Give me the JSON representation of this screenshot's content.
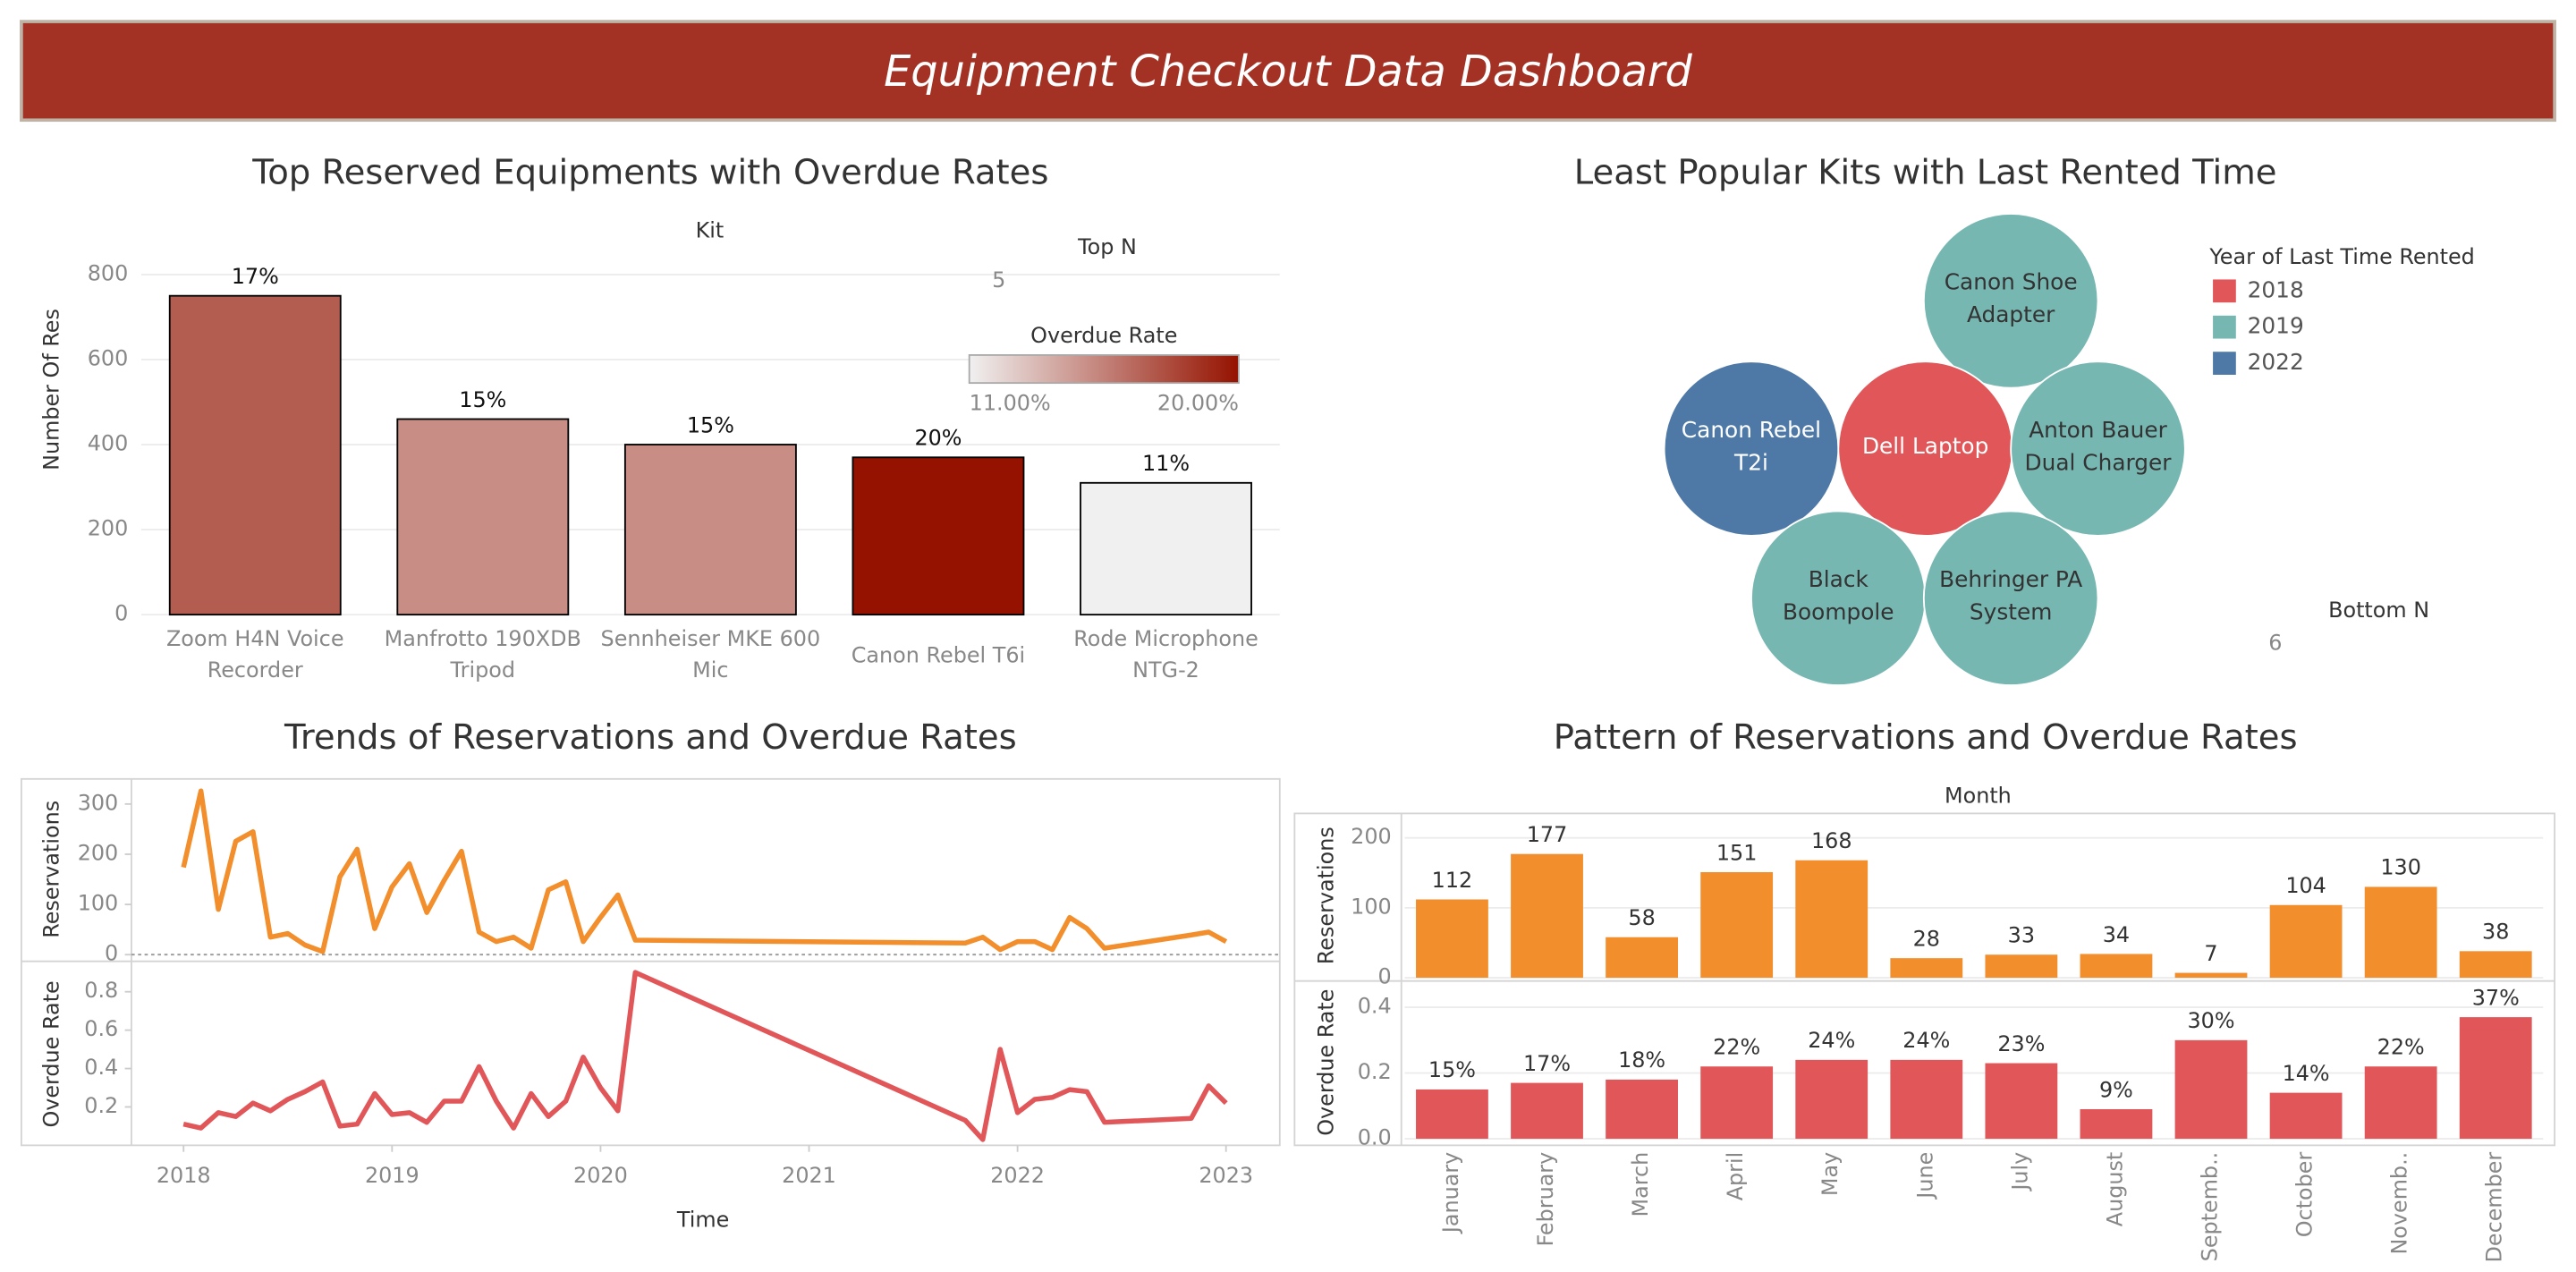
{
  "title": "Equipment Checkout Data Dashboard",
  "chart_data": [
    {
      "type": "bar",
      "title": "Top Reserved Equipments with Overdue Rates",
      "x_label": "Kit",
      "y_label": "Number Of Res",
      "categories": [
        "Zoom H4N Voice Recorder",
        "Manfrotto 190XDB Tripod",
        "Sennheiser MKE 600 Mic",
        "Canon Rebel T6i",
        "Rode Microphone NTG-2"
      ],
      "values": [
        750,
        460,
        400,
        370,
        310
      ],
      "ylim": [
        0,
        800
      ],
      "yticks": [
        0,
        200,
        400,
        600,
        800
      ],
      "grid": true,
      "overdue_rate": {
        "values": [
          17,
          15,
          15,
          20,
          11
        ],
        "value_labels": [
          "17%",
          "15%",
          "15%",
          "20%",
          "11%"
        ]
      },
      "color_legend": {
        "title": "Overdue Rate",
        "colors": [
          "#f0f0f0",
          "#951200"
        ],
        "min": {
          "value": 11,
          "label": "11.00%"
        },
        "max": {
          "value": 20,
          "label": "20.00%"
        }
      },
      "parameter": {
        "label": "Top N",
        "value": 5
      }
    },
    {
      "type": "packed_bubble",
      "title": "Least Popular Kits with Last Rented Time",
      "legend": {
        "title": "Year of Last Time Rented",
        "entries": [
          {
            "name": "2018",
            "color": "#e15759"
          },
          {
            "name": "2019",
            "color": "#76b7b2"
          },
          {
            "name": "2022",
            "color": "#4e79a7"
          }
        ]
      },
      "items": [
        {
          "label": "Canon Shoe Adapter",
          "year": "2019"
        },
        {
          "label": "Canon Rebel T2i",
          "year": "2022"
        },
        {
          "label": "Dell Laptop",
          "year": "2018"
        },
        {
          "label": "Anton Bauer Dual Charger",
          "year": "2019"
        },
        {
          "label": "Black Boompole",
          "year": "2019"
        },
        {
          "label": "Behringer PA System",
          "year": "2019"
        }
      ],
      "parameter": {
        "label": "Bottom N",
        "value": 6
      }
    },
    {
      "type": "line_panels",
      "title": "Trends of  Reservations and Overdue Rates",
      "x_label": "Time",
      "x": [
        2018,
        2018.083,
        2018.167,
        2018.25,
        2018.333,
        2018.417,
        2018.5,
        2018.583,
        2018.667,
        2018.75,
        2018.833,
        2018.917,
        2019,
        2019.083,
        2019.167,
        2019.25,
        2019.333,
        2019.417,
        2019.5,
        2019.583,
        2019.667,
        2019.75,
        2019.833,
        2019.917,
        2020,
        2020.083,
        2020.167,
        2021.75,
        2021.833,
        2021.917,
        2022,
        2022.083,
        2022.167,
        2022.25,
        2022.333,
        2022.417,
        2022.833,
        2022.917,
        2023
      ],
      "xlim": [
        2017.75,
        2023.25
      ],
      "xticks": [
        2018,
        2019,
        2020,
        2021,
        2022,
        2023
      ],
      "panels": [
        {
          "y_label": "Reservations",
          "color": "#f28e2b",
          "ylim": [
            -10,
            350
          ],
          "yticks": [
            0,
            100,
            200,
            300
          ],
          "values": [
            174,
            326,
            90,
            226,
            245,
            35,
            42,
            19,
            6,
            155,
            210,
            52,
            135,
            181,
            84,
            148,
            206,
            45,
            26,
            35,
            13,
            129,
            145,
            26,
            74,
            119,
            29,
            23,
            35,
            10,
            26,
            26,
            10,
            74,
            52,
            13,
            39,
            45,
            26
          ]
        },
        {
          "y_label": "Overdue Rate",
          "color": "#e15759",
          "ylim": [
            0,
            0.95
          ],
          "yticks": [
            0.2,
            0.4,
            0.6,
            0.8
          ],
          "values": [
            0.11,
            0.09,
            0.17,
            0.15,
            0.22,
            0.18,
            0.24,
            0.28,
            0.33,
            0.1,
            0.11,
            0.27,
            0.16,
            0.17,
            0.12,
            0.23,
            0.23,
            0.41,
            0.23,
            0.09,
            0.27,
            0.15,
            0.23,
            0.46,
            0.3,
            0.18,
            0.9,
            0.13,
            0.03,
            0.5,
            0.17,
            0.24,
            0.25,
            0.29,
            0.28,
            0.12,
            0.14,
            0.31,
            0.22
          ]
        }
      ]
    },
    {
      "type": "bar_panels",
      "title": "Pattern of Reservations and Overdue Rates",
      "x_label": "Month",
      "categories": [
        "January",
        "February",
        "March",
        "April",
        "May",
        "June",
        "July",
        "August",
        "Septemb..",
        "October",
        "Novemb..",
        "December"
      ],
      "panels": [
        {
          "y_label": "Reservations",
          "color": "#f28e2b",
          "ylim": [
            0,
            235
          ],
          "yticks": [
            0,
            100,
            200
          ],
          "values": [
            112,
            177,
            58,
            151,
            168,
            28,
            33,
            34,
            7,
            104,
            130,
            38
          ]
        },
        {
          "y_label": "Overdue Rate",
          "color": "#e15759",
          "ylim": [
            0,
            0.465
          ],
          "yticks": [
            {
              "value": 0,
              "label": "0.0"
            },
            0.2,
            0.4
          ],
          "values": [
            0.15,
            0.17,
            0.18,
            0.22,
            0.24,
            0.24,
            0.23,
            0.09,
            0.3,
            0.14,
            0.22,
            0.37
          ],
          "value_labels": [
            "15%",
            "17%",
            "18%",
            "22%",
            "24%",
            "24%",
            "23%",
            "9%",
            "30%",
            "14%",
            "22%",
            "37%"
          ]
        }
      ]
    }
  ]
}
